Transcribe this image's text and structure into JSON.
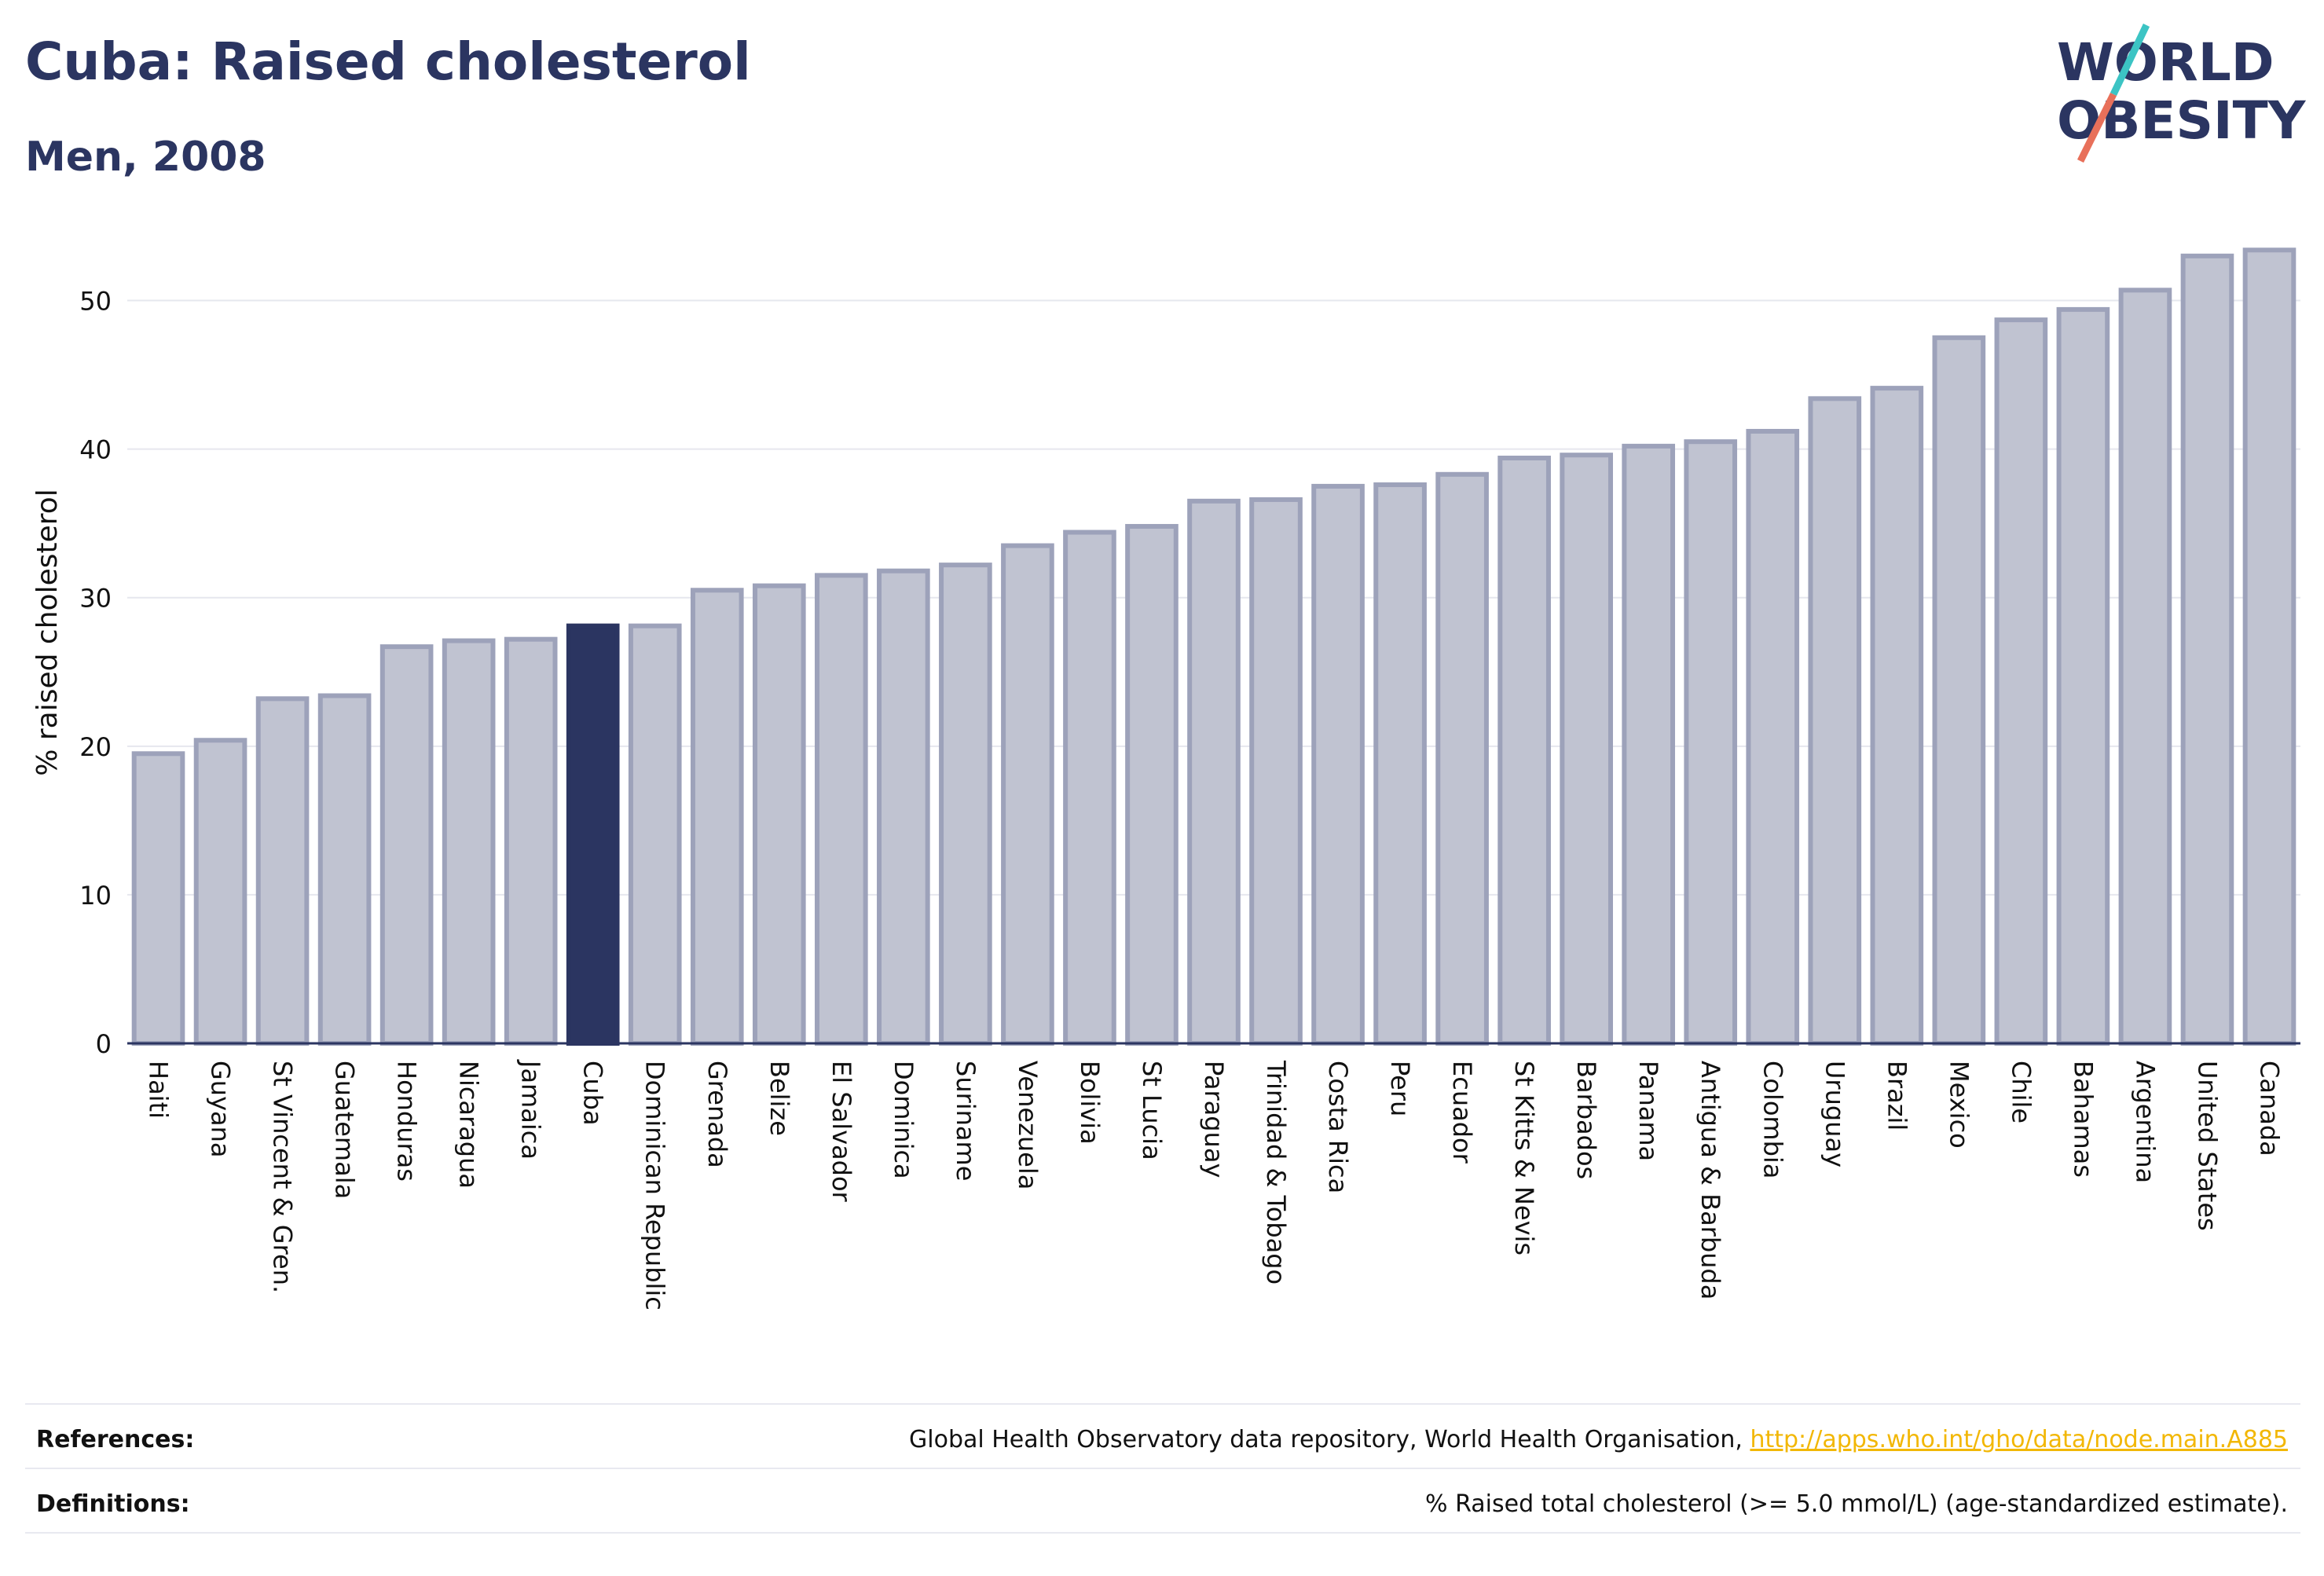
{
  "header": {
    "title": "Cuba: Raised cholesterol",
    "subtitle": "Men, 2008"
  },
  "logo": {
    "line1": "WORLD",
    "line2": "OBESITY",
    "slash_top_color": "#3cc4c4",
    "slash_bottom_color": "#e8705a",
    "text_color": "#2b3561"
  },
  "colors": {
    "bar": "#c0c3d1",
    "bar_stroke": "#9da2ba",
    "highlight": "#2b3561",
    "grid": "#e6e7ee",
    "axis": "#2b3561"
  },
  "chart_data": {
    "type": "bar",
    "title": "Cuba: Raised cholesterol",
    "subtitle": "Men, 2008",
    "xlabel": "",
    "ylabel": "% raised cholesterol",
    "ylim": [
      0,
      55
    ],
    "yticks": [
      0,
      10,
      20,
      30,
      40,
      50
    ],
    "grid": true,
    "highlight": "Cuba",
    "categories": [
      "Haiti",
      "Guyana",
      "St Vincent & Gren.",
      "Guatemala",
      "Honduras",
      "Nicaragua",
      "Jamaica",
      "Cuba",
      "Dominican Republic",
      "Grenada",
      "Belize",
      "El Salvador",
      "Dominica",
      "Suriname",
      "Venezuela",
      "Bolivia",
      "St Lucia",
      "Paraguay",
      "Trinidad & Tobago",
      "Costa Rica",
      "Peru",
      "Ecuador",
      "St Kitts & Nevis",
      "Barbados",
      "Panama",
      "Antigua & Barbuda",
      "Colombia",
      "Uruguay",
      "Brazil",
      "Mexico",
      "Chile",
      "Bahamas",
      "Argentina",
      "United States",
      "Canada"
    ],
    "values": [
      19.5,
      20.4,
      23.2,
      23.4,
      26.7,
      27.1,
      27.2,
      28.1,
      28.1,
      30.5,
      30.8,
      31.5,
      31.8,
      32.2,
      33.5,
      34.4,
      34.8,
      36.5,
      36.6,
      37.5,
      37.6,
      38.3,
      39.4,
      39.6,
      40.2,
      40.5,
      41.2,
      43.4,
      44.1,
      47.5,
      48.7,
      49.4,
      50.7,
      53.0,
      53.4
    ]
  },
  "footer": {
    "references_label": "References:",
    "references_text": "Global Health Observatory data repository, World Health Organisation, ",
    "references_link": "http://apps.who.int/gho/data/node.main.A885",
    "definitions_label": "Definitions:",
    "definitions_text": "% Raised total cholesterol (>= 5.0 mmol/L) (age-standardized estimate)."
  }
}
